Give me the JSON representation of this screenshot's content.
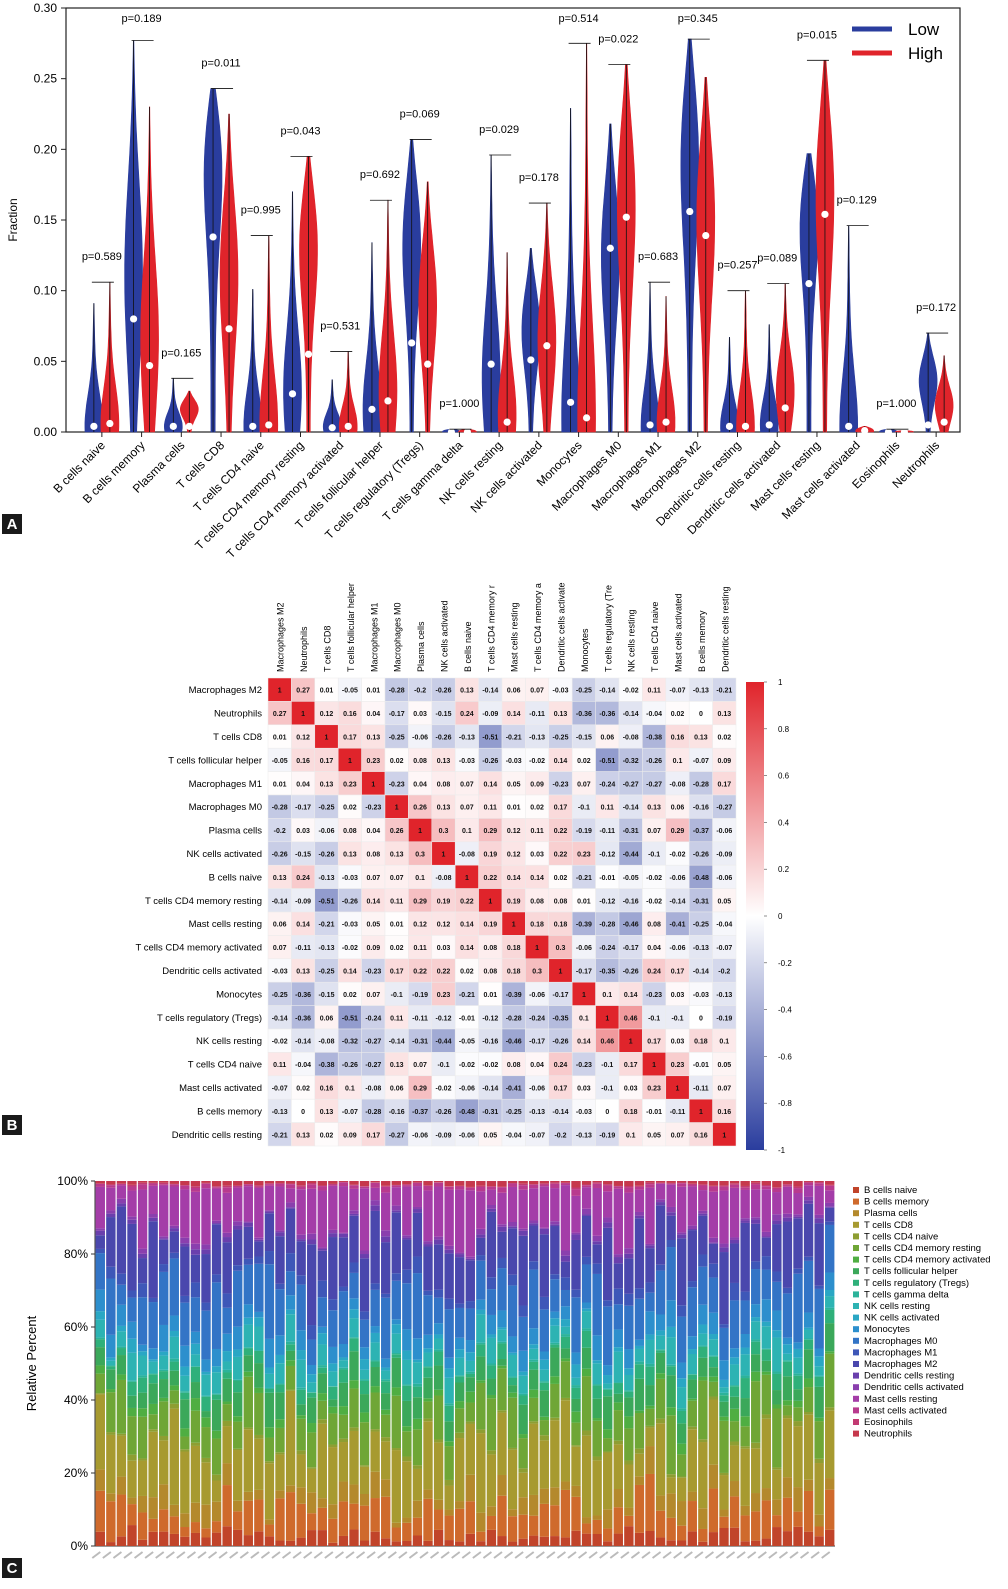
{
  "panel_labels": {
    "a": "A",
    "b": "B",
    "c": "C"
  },
  "chart_data": [
    {
      "type": "violin",
      "ylabel": "Fraction",
      "ylim": [
        0,
        0.3
      ],
      "yticks": [
        "0.00",
        "0.05",
        "0.10",
        "0.15",
        "0.20",
        "0.25",
        "0.30"
      ],
      "legend_position": "top-right",
      "series": [
        {
          "name": "Low",
          "color": "#2a3d9e"
        },
        {
          "name": "High",
          "color": "#e0242b"
        }
      ],
      "categories": [
        "B cells naive",
        "B cells memory",
        "Plasma cells",
        "T cells CD8",
        "T cells CD4 naive",
        "T cells CD4 memory resting",
        "T cells CD4 memory activated",
        "T cells follicular helper",
        "T cells regulatory (Tregs)",
        "T cells gamma delta",
        "NK cells resting",
        "NK cells activated",
        "Monocytes",
        "Macrophages M0",
        "Macrophages M1",
        "Macrophages M2",
        "Dendritic cells resting",
        "Dendritic cells activated",
        "Mast cells resting",
        "Mast cells activated",
        "Eosinophils",
        "Neutrophils"
      ],
      "pvalues": [
        "p=0.589",
        "p=0.189",
        "p=0.165",
        "p=0.011",
        "p=0.995",
        "p=0.043",
        "p=0.531",
        "p=0.692",
        "p=0.069",
        "p=1.000",
        "p=0.029",
        "p=0.178",
        "p=0.514",
        "p=0.022",
        "p=0.683",
        "p=0.345",
        "p=0.257",
        "p=0.089",
        "p=0.015",
        "p=0.129",
        "p=1.000",
        "p=0.172"
      ],
      "low": {
        "max": [
          0.091,
          0.277,
          0.038,
          0.243,
          0.101,
          0.17,
          0.037,
          0.134,
          0.207,
          0.002,
          0.196,
          0.13,
          0.229,
          0.218,
          0.106,
          0.278,
          0.067,
          0.076,
          0.197,
          0.146,
          0.002,
          0.07
        ],
        "median": [
          0.004,
          0.08,
          0.004,
          0.138,
          0.004,
          0.027,
          0.003,
          0.016,
          0.063,
          0.0,
          0.048,
          0.051,
          0.021,
          0.13,
          0.005,
          0.156,
          0.004,
          0.005,
          0.105,
          0.004,
          0.0,
          0.005
        ],
        "mode": [
          0.004,
          0.12,
          0.004,
          0.22,
          0.004,
          0.03,
          0.004,
          0.016,
          0.15,
          0.0,
          0.04,
          0.08,
          0.01,
          0.14,
          0.004,
          0.22,
          0.004,
          0.005,
          0.17,
          0.004,
          0.0,
          0.04
        ]
      },
      "high": {
        "max": [
          0.106,
          0.23,
          0.029,
          0.225,
          0.139,
          0.195,
          0.057,
          0.164,
          0.177,
          0.002,
          0.127,
          0.162,
          0.275,
          0.26,
          0.096,
          0.251,
          0.1,
          0.105,
          0.263,
          0.004,
          0.001,
          0.054
        ],
        "median": [
          0.006,
          0.047,
          0.004,
          0.073,
          0.005,
          0.055,
          0.004,
          0.022,
          0.048,
          0.0,
          0.007,
          0.061,
          0.01,
          0.152,
          0.007,
          0.139,
          0.004,
          0.017,
          0.154,
          0.001,
          0.0,
          0.007
        ],
        "mode": [
          0.006,
          0.07,
          0.018,
          0.12,
          0.006,
          0.15,
          0.004,
          0.03,
          0.1,
          0.0,
          0.012,
          0.07,
          0.01,
          0.18,
          0.007,
          0.17,
          0.004,
          0.03,
          0.19,
          0.001,
          0.0,
          0.02
        ]
      }
    },
    {
      "type": "heatmap",
      "labels": [
        "Macrophages M2",
        "Neutrophils",
        "T cells CD8",
        "T cells follicular helper",
        "Macrophages M1",
        "Macrophages M0",
        "Plasma cells",
        "NK cells activated",
        "B cells naive",
        "T cells CD4 memory resting",
        "Mast cells resting",
        "T cells CD4 memory activated",
        "Dendritic cells activated",
        "Monocytes",
        "T cells regulatory (Tregs)",
        "NK cells resting",
        "T cells CD4 naive",
        "Mast cells activated",
        "B cells memory",
        "Dendritic cells resting"
      ],
      "column_labels": [
        "Macrophages M2",
        "Neutrophils",
        "T cells CD8",
        "T cells follicular helper",
        "Macrophages M1",
        "Macrophages M0",
        "Plasma cells",
        "NK cells activated",
        "B cells naive",
        "T cells CD4 memory r",
        "Mast cells resting",
        "T cells CD4 memory a",
        "Dendritic cells activate",
        "Monocytes",
        "T cells regulatory (Tre",
        "NK cells resting",
        "T cells CD4 naive",
        "Mast cells activated",
        "B cells memory",
        "Dendritic cells resting"
      ],
      "values": [
        [
          1,
          0.27,
          0.01,
          -0.05,
          0.01,
          -0.28,
          -0.2,
          -0.26,
          0.13,
          -0.14,
          0.06,
          0.07,
          -0.03,
          -0.25,
          -0.14,
          -0.02,
          0.11,
          -0.07,
          -0.13,
          -0.21
        ],
        [
          0.27,
          1,
          0.12,
          0.16,
          0.04,
          -0.17,
          0.03,
          -0.15,
          0.24,
          -0.09,
          0.14,
          -0.11,
          0.13,
          -0.36,
          -0.36,
          -0.14,
          -0.04,
          0.02,
          0,
          0.13
        ],
        [
          0.01,
          0.12,
          1,
          0.17,
          0.13,
          -0.25,
          -0.06,
          -0.26,
          -0.13,
          -0.51,
          -0.21,
          -0.13,
          -0.25,
          -0.15,
          0.06,
          -0.08,
          -0.38,
          0.16,
          0.13,
          0.02
        ],
        [
          -0.05,
          0.16,
          0.17,
          1,
          0.23,
          0.02,
          0.08,
          0.13,
          -0.03,
          -0.26,
          -0.03,
          -0.02,
          0.14,
          0.02,
          -0.51,
          -0.32,
          -0.26,
          0.1,
          -0.07,
          0.09
        ],
        [
          0.01,
          0.04,
          0.13,
          0.23,
          1,
          -0.23,
          0.04,
          0.08,
          0.07,
          0.14,
          0.05,
          0.09,
          -0.23,
          0.07,
          -0.24,
          -0.27,
          -0.27,
          -0.08,
          -0.28,
          0.17
        ],
        [
          -0.28,
          -0.17,
          -0.25,
          0.02,
          -0.23,
          1,
          0.26,
          0.13,
          0.07,
          0.11,
          0.01,
          0.02,
          0.17,
          -0.1,
          0.11,
          -0.14,
          0.13,
          0.06,
          -0.16,
          -0.27
        ],
        [
          -0.2,
          0.03,
          -0.06,
          0.08,
          0.04,
          0.26,
          1,
          0.3,
          0.1,
          0.29,
          0.12,
          0.11,
          0.22,
          -0.19,
          -0.11,
          -0.31,
          0.07,
          0.29,
          -0.37,
          -0.06
        ],
        [
          -0.26,
          -0.15,
          -0.26,
          0.13,
          0.08,
          0.13,
          0.3,
          1,
          -0.08,
          0.19,
          0.12,
          0.03,
          0.22,
          0.23,
          -0.12,
          -0.44,
          -0.1,
          -0.02,
          -0.26,
          -0.09
        ],
        [
          0.13,
          0.24,
          -0.13,
          -0.03,
          0.07,
          0.07,
          0.1,
          -0.08,
          1,
          0.22,
          0.14,
          0.14,
          0.02,
          -0.21,
          -0.01,
          -0.05,
          -0.02,
          -0.06,
          -0.48,
          -0.06
        ],
        [
          -0.14,
          -0.09,
          -0.51,
          -0.26,
          0.14,
          0.11,
          0.29,
          0.19,
          0.22,
          1,
          0.19,
          0.08,
          0.08,
          0.01,
          -0.12,
          -0.16,
          -0.02,
          -0.14,
          -0.31,
          0.05
        ],
        [
          0.06,
          0.14,
          -0.21,
          -0.03,
          0.05,
          0.01,
          0.12,
          0.12,
          0.14,
          0.19,
          1,
          0.18,
          0.18,
          -0.39,
          -0.28,
          -0.46,
          0.08,
          -0.41,
          -0.25,
          -0.04
        ],
        [
          0.07,
          -0.11,
          -0.13,
          -0.02,
          0.09,
          0.02,
          0.11,
          0.03,
          0.14,
          0.08,
          0.18,
          1,
          0.3,
          -0.06,
          -0.24,
          -0.17,
          0.04,
          -0.06,
          -0.13,
          -0.07
        ],
        [
          -0.03,
          0.13,
          -0.25,
          0.14,
          -0.23,
          0.17,
          0.22,
          0.22,
          0.02,
          0.08,
          0.18,
          0.3,
          1,
          -0.17,
          -0.35,
          -0.26,
          0.24,
          0.17,
          -0.14,
          -0.2
        ],
        [
          -0.25,
          -0.36,
          -0.15,
          0.02,
          0.07,
          -0.1,
          -0.19,
          0.23,
          -0.21,
          0.01,
          -0.39,
          -0.06,
          -0.17,
          1,
          0.1,
          0.14,
          -0.23,
          0.03,
          -0.03,
          -0.13
        ],
        [
          -0.14,
          -0.36,
          0.06,
          -0.51,
          -0.24,
          0.11,
          -0.11,
          -0.12,
          -0.01,
          -0.12,
          -0.28,
          -0.24,
          -0.35,
          0.1,
          1,
          0.46,
          -0.1,
          -0.1,
          0,
          -0.19
        ],
        [
          -0.02,
          -0.14,
          -0.08,
          -0.32,
          -0.27,
          -0.14,
          -0.31,
          -0.44,
          -0.05,
          -0.16,
          -0.46,
          -0.17,
          -0.26,
          0.14,
          0.46,
          1,
          0.17,
          0.03,
          0.18,
          0.1
        ],
        [
          0.11,
          -0.04,
          -0.38,
          -0.26,
          -0.27,
          0.13,
          0.07,
          -0.1,
          -0.02,
          -0.02,
          0.08,
          0.04,
          0.24,
          -0.23,
          -0.1,
          0.17,
          1,
          0.23,
          -0.01,
          0.05
        ],
        [
          -0.07,
          0.02,
          0.16,
          0.1,
          -0.08,
          0.06,
          0.29,
          -0.02,
          -0.06,
          -0.14,
          -0.41,
          -0.06,
          0.17,
          0.03,
          -0.1,
          0.03,
          0.23,
          1,
          -0.11,
          0.07
        ],
        [
          -0.13,
          0,
          0.13,
          -0.07,
          -0.28,
          -0.16,
          -0.37,
          -0.26,
          -0.48,
          -0.31,
          -0.25,
          -0.13,
          -0.14,
          -0.03,
          0,
          0.18,
          -0.01,
          -0.11,
          1,
          0.16
        ],
        [
          -0.21,
          0.13,
          0.02,
          0.09,
          0.17,
          -0.27,
          -0.06,
          -0.09,
          -0.06,
          0.05,
          -0.04,
          -0.07,
          -0.2,
          -0.13,
          -0.19,
          0.1,
          0.05,
          0.07,
          0.16,
          1
        ]
      ],
      "colorbar_ticks": [
        "1",
        "0.8",
        "0.6",
        "0.4",
        "0.2",
        "0",
        "-0.2",
        "-0.4",
        "-0.6",
        "-0.8",
        "-1"
      ],
      "colors": {
        "positive": "#e0242b",
        "negative": "#2a3d9e",
        "neutral": "#ffffff"
      }
    },
    {
      "type": "stacked_bar",
      "ylabel": "Relative Percent",
      "yticks": [
        "0%",
        "20%",
        "40%",
        "60%",
        "80%",
        "100%"
      ],
      "legend_position": "right",
      "sample_count": 70,
      "series": [
        {
          "name": "B cells naive",
          "color": "#c1442a",
          "base": 0.035
        },
        {
          "name": "B cells memory",
          "color": "#cf6a2c",
          "base": 0.09
        },
        {
          "name": "Plasma cells",
          "color": "#b4892c",
          "base": 0.045
        },
        {
          "name": "T cells CD8",
          "color": "#a79a30",
          "base": 0.15
        },
        {
          "name": "T cells CD4 naive",
          "color": "#8e9e32",
          "base": 0.01
        },
        {
          "name": "T cells CD4 memory resting",
          "color": "#6fa636",
          "base": 0.11
        },
        {
          "name": "T cells CD4 memory activated",
          "color": "#4fae42",
          "base": 0.02
        },
        {
          "name": "T cells follicular helper",
          "color": "#3ba85a",
          "base": 0.06
        },
        {
          "name": "T cells regulatory (Tregs)",
          "color": "#2fb07a",
          "base": 0.03
        },
        {
          "name": "T cells gamma delta",
          "color": "#2cb39a",
          "base": 0.005
        },
        {
          "name": "NK cells resting",
          "color": "#2db3b3",
          "base": 0.05
        },
        {
          "name": "NK cells activated",
          "color": "#2aa7c4",
          "base": 0.02
        },
        {
          "name": "Monocytes",
          "color": "#2d8fcd",
          "base": 0.05
        },
        {
          "name": "Macrophages M0",
          "color": "#3374c6",
          "base": 0.12
        },
        {
          "name": "Macrophages M1",
          "color": "#3e57b8",
          "base": 0.03
        },
        {
          "name": "Macrophages M2",
          "color": "#4a47ad",
          "base": 0.14
        },
        {
          "name": "Dendritic cells resting",
          "color": "#6a3fad",
          "base": 0.01
        },
        {
          "name": "Dendritic cells activated",
          "color": "#8a3fae",
          "base": 0.01
        },
        {
          "name": "Mast cells resting",
          "color": "#a43da8",
          "base": 0.11
        },
        {
          "name": "Mast cells activated",
          "color": "#b83a8e",
          "base": 0.01
        },
        {
          "name": "Eosinophils",
          "color": "#c23a72",
          "base": 0.003
        },
        {
          "name": "Neutrophils",
          "color": "#c6384c",
          "base": 0.01
        }
      ]
    }
  ]
}
